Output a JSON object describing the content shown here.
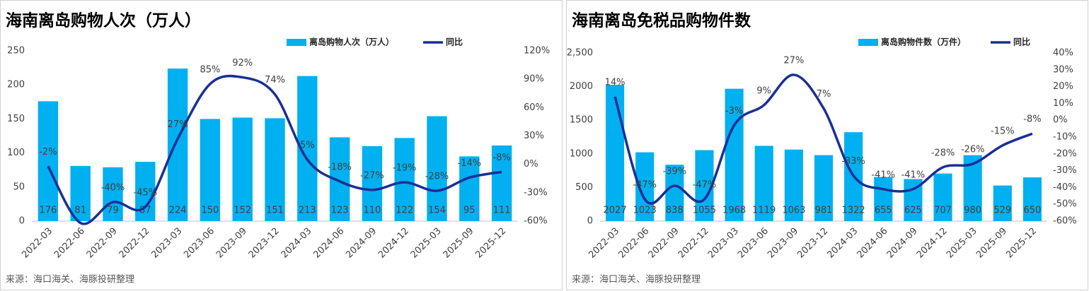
{
  "chart_data": [
    {
      "type": "bar-line",
      "title": "海南离岛购物人次（万人）",
      "source": "来源：海口海关、海豚投研整理",
      "categories": [
        "2022-03",
        "2022-06",
        "2022-09",
        "2022-12",
        "2023-03",
        "2023-06",
        "2023-09",
        "2023-12",
        "2024-03",
        "2024-06",
        "2024-09",
        "2024-12",
        "2025-03",
        "2025-09",
        "2025-12"
      ],
      "series": [
        {
          "name": "离岛购物人次（万人）",
          "color": "#00b0f0",
          "values": [
            176,
            81,
            79,
            87,
            224,
            150,
            152,
            151,
            213,
            123,
            110,
            122,
            154,
            95,
            111
          ]
        },
        {
          "name": "同比",
          "color": "#1a2f96",
          "axis": "y2",
          "values": [
            -2,
            -62,
            -40,
            -45,
            27,
            85,
            92,
            74,
            5,
            -18,
            -27,
            -19,
            -28,
            -14,
            -8
          ],
          "value_labels": [
            "-2%",
            null,
            "-40%",
            "-45%",
            "27%",
            "85%",
            "92%",
            "74%",
            "5%",
            "-18%",
            "-27%",
            "-19%",
            "-28%",
            "-14%",
            "-8%"
          ]
        }
      ],
      "ylim": [
        0,
        250
      ],
      "yticks": [
        0,
        50,
        100,
        150,
        200,
        250
      ],
      "y2lim": [
        -60,
        120
      ],
      "y2ticks": [
        {
          "value": -60,
          "label": "-60%"
        },
        {
          "value": -30,
          "label": "-30%"
        },
        {
          "value": 0,
          "label": "0%"
        },
        {
          "value": 30,
          "label": "30%"
        },
        {
          "value": 60,
          "label": "60%"
        },
        {
          "value": 90,
          "label": "90%"
        },
        {
          "value": 120,
          "label": "120%"
        }
      ],
      "legend": "top"
    },
    {
      "type": "bar-line",
      "title": "海南离岛免税品购物件数",
      "source": "来源：海口海关、海豚投研整理",
      "categories": [
        "2022-03",
        "2022-06",
        "2022-09",
        "2022-12",
        "2023-03",
        "2023-06",
        "2023-09",
        "2023-12",
        "2024-03",
        "2024-06",
        "2024-09",
        "2024-12",
        "2025-03",
        "2025-09",
        "2025-12"
      ],
      "series": [
        {
          "name": "离岛购物件数（万件）",
          "color": "#00b0f0",
          "values": [
            2027,
            1023,
            838,
            1055,
            1968,
            1119,
            1063,
            981,
            1322,
            655,
            625,
            707,
            980,
            529,
            650
          ]
        },
        {
          "name": "同比",
          "color": "#1a2f96",
          "axis": "y2",
          "values": [
            14,
            -47,
            -39,
            -47,
            -3,
            9,
            27,
            7,
            -33,
            -41,
            -41,
            -28,
            -26,
            -15,
            -8
          ],
          "value_labels": [
            "14%",
            "-47%",
            "-39%",
            "-47%",
            "-3%",
            "9%",
            "27%",
            "7%",
            "-33%",
            "-41%",
            "-41%",
            "-28%",
            "-26%",
            "-15%",
            "-8%"
          ]
        }
      ],
      "ylim": [
        0,
        2500
      ],
      "yticks": [
        0,
        500,
        1000,
        1500,
        2000,
        {
          "value": 2500,
          "label": "2,500"
        }
      ],
      "y2lim": [
        -60,
        40
      ],
      "y2ticks": [
        {
          "value": -60,
          "label": "-60%"
        },
        {
          "value": -50,
          "label": "-50%"
        },
        {
          "value": -40,
          "label": "-40%"
        },
        {
          "value": -30,
          "label": "-30%"
        },
        {
          "value": -20,
          "label": "-20%"
        },
        {
          "value": -10,
          "label": "-10%"
        },
        {
          "value": 0,
          "label": "0%"
        },
        {
          "value": 10,
          "label": "10%"
        },
        {
          "value": 20,
          "label": "20%"
        },
        {
          "value": 30,
          "label": "30%"
        },
        {
          "value": 40,
          "label": "40%"
        }
      ],
      "legend": "top"
    }
  ]
}
